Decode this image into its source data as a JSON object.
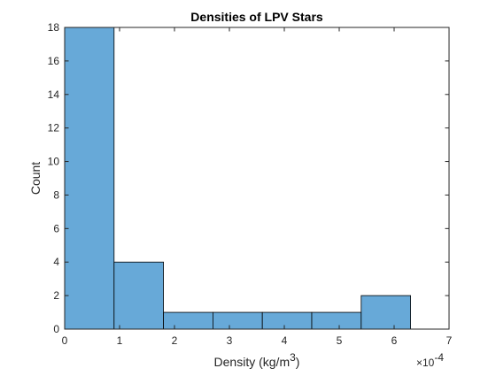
{
  "chart_data": {
    "type": "bar",
    "title": "Densities of LPV Stars",
    "xlabel": "Density (kg/m",
    "xlabel_superscript": "3",
    "xlabel_suffix": ")",
    "ylabel": "Count",
    "x_exponent_prefix": "×10",
    "x_exponent_power": "-4",
    "xlim": [
      0,
      7
    ],
    "ylim": [
      0,
      18
    ],
    "xticks": [
      "0",
      "1",
      "2",
      "3",
      "4",
      "5",
      "6",
      "7"
    ],
    "yticks": [
      "0",
      "2",
      "4",
      "6",
      "8",
      "10",
      "12",
      "14",
      "16",
      "18"
    ],
    "bin_edges": [
      0,
      0.9,
      1.8,
      2.7,
      3.6,
      4.5,
      5.4,
      6.3
    ],
    "values": [
      18,
      4,
      1,
      1,
      1,
      1,
      2
    ],
    "bar_color": "#67a9d8",
    "edge_color": "#000000",
    "axis_color": "#262626",
    "grid": false,
    "box": true
  }
}
